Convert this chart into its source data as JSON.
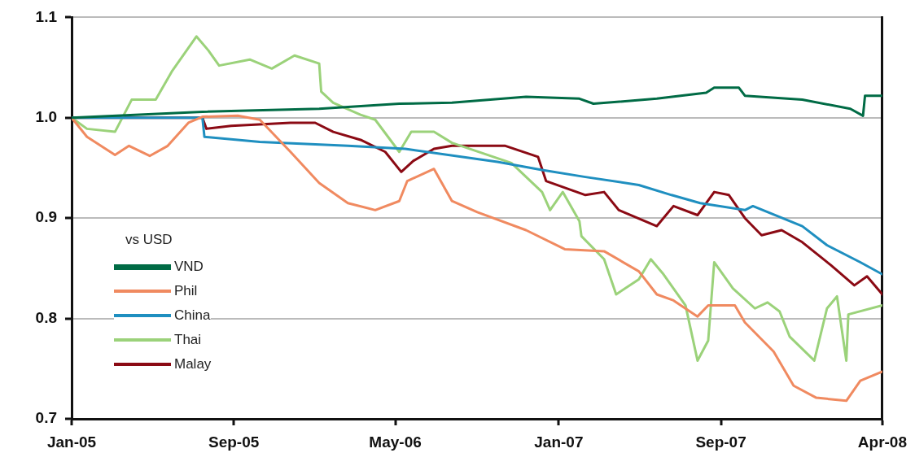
{
  "chart_data": {
    "type": "line",
    "legend_title": "vs USD",
    "legend": "bottom left",
    "grid": "y",
    "marker": "none",
    "line_style": "solid",
    "xlim": [
      "2005-01-01",
      "2008-04-30"
    ],
    "xticks": [
      {
        "value": "2005-01-01",
        "label": "Jan-05"
      },
      {
        "value": "2005-09-01",
        "label": "Sep-05"
      },
      {
        "value": "2006-05-01",
        "label": "May-06"
      },
      {
        "value": "2007-01-01",
        "label": "Jan-07"
      },
      {
        "value": "2007-09-01",
        "label": "Sep-07"
      },
      {
        "value": "2008-04-30",
        "label": "Apr-08"
      }
    ],
    "ylim": [
      0.7,
      1.1
    ],
    "yticks": [
      {
        "value": 0.7,
        "label": "0.7"
      },
      {
        "value": 0.8,
        "label": "0.8"
      },
      {
        "value": 0.9,
        "label": "0.9"
      },
      {
        "value": 1.0,
        "label": "1.0"
      },
      {
        "value": 1.1,
        "label": "1.1"
      }
    ],
    "series": [
      {
        "name": "VND",
        "color": "#006b45",
        "x": [
          "2005-01-01",
          "2005-07-16",
          "2006-01-07",
          "2006-05-07",
          "2006-07-25",
          "2006-11-13",
          "2007-02-01",
          "2007-02-22",
          "2007-05-28",
          "2007-08-10",
          "2007-08-22",
          "2007-09-28",
          "2007-10-07",
          "2008-01-01",
          "2008-03-13",
          "2008-04-01",
          "2008-04-04",
          "2008-04-30"
        ],
        "values": [
          1.0,
          1.006,
          1.009,
          1.014,
          1.015,
          1.021,
          1.019,
          1.014,
          1.019,
          1.025,
          1.03,
          1.03,
          1.022,
          1.018,
          1.009,
          1.002,
          1.022,
          1.022
        ]
      },
      {
        "name": "Phil",
        "color": "#f08a60",
        "x": [
          "2005-01-01",
          "2005-01-24",
          "2005-03-07",
          "2005-03-28",
          "2005-04-28",
          "2005-05-25",
          "2005-06-25",
          "2005-07-16",
          "2005-09-07",
          "2005-10-10",
          "2005-11-25",
          "2006-01-07",
          "2006-02-19",
          "2006-04-01",
          "2006-05-07",
          "2006-05-19",
          "2006-06-28",
          "2006-07-25",
          "2006-09-01",
          "2006-11-13",
          "2007-01-10",
          "2007-03-10",
          "2007-05-01",
          "2007-05-28",
          "2007-06-22",
          "2007-07-28",
          "2007-08-13",
          "2007-09-22",
          "2007-10-07",
          "2007-11-19",
          "2007-12-19",
          "2008-01-22",
          "2008-03-07",
          "2008-03-28",
          "2008-04-30"
        ],
        "values": [
          1.0,
          0.981,
          0.963,
          0.972,
          0.962,
          0.972,
          0.995,
          1.001,
          1.002,
          0.998,
          0.966,
          0.935,
          0.915,
          0.908,
          0.917,
          0.937,
          0.949,
          0.917,
          0.906,
          0.888,
          0.869,
          0.867,
          0.847,
          0.824,
          0.818,
          0.802,
          0.813,
          0.813,
          0.796,
          0.767,
          0.733,
          0.721,
          0.718,
          0.738,
          0.747
        ]
      },
      {
        "name": "China",
        "color": "#1f8fc0",
        "x": [
          "2005-01-01",
          "2005-07-16",
          "2005-07-19",
          "2005-10-10",
          "2006-02-19",
          "2006-05-16",
          "2006-10-01",
          "2006-12-07",
          "2007-02-10",
          "2007-05-01",
          "2007-06-19",
          "2007-08-01",
          "2007-10-07",
          "2007-10-19",
          "2008-01-01",
          "2008-02-07",
          "2008-03-28",
          "2008-04-30"
        ],
        "values": [
          1.0,
          1.0,
          0.981,
          0.976,
          0.972,
          0.969,
          0.956,
          0.948,
          0.941,
          0.933,
          0.923,
          0.915,
          0.908,
          0.912,
          0.892,
          0.873,
          0.856,
          0.844
        ]
      },
      {
        "name": "Thai",
        "color": "#9bd27a",
        "x": [
          "2005-01-01",
          "2005-01-24",
          "2005-03-07",
          "2005-04-01",
          "2005-05-07",
          "2005-06-01",
          "2005-07-07",
          "2005-07-25",
          "2005-08-10",
          "2005-09-25",
          "2005-10-28",
          "2005-12-01",
          "2006-01-07",
          "2006-01-10",
          "2006-01-28",
          "2006-03-10",
          "2006-04-01",
          "2006-05-07",
          "2006-05-25",
          "2006-06-28",
          "2006-07-25",
          "2006-10-22",
          "2006-12-07",
          "2006-12-19",
          "2007-01-07",
          "2007-02-01",
          "2007-02-04",
          "2007-03-10",
          "2007-03-28",
          "2007-05-01",
          "2007-05-19",
          "2007-06-07",
          "2007-07-10",
          "2007-07-28",
          "2007-08-13",
          "2007-08-22",
          "2007-09-19",
          "2007-10-22",
          "2007-11-10",
          "2007-11-28",
          "2007-12-13",
          "2008-01-19",
          "2008-02-07",
          "2008-02-22",
          "2008-03-07",
          "2008-03-10",
          "2008-04-30"
        ],
        "values": [
          1.0,
          0.989,
          0.986,
          1.018,
          1.018,
          1.047,
          1.081,
          1.067,
          1.052,
          1.058,
          1.049,
          1.062,
          1.054,
          1.026,
          1.015,
          1.003,
          0.998,
          0.966,
          0.986,
          0.986,
          0.975,
          0.955,
          0.926,
          0.908,
          0.926,
          0.897,
          0.882,
          0.859,
          0.824,
          0.839,
          0.859,
          0.844,
          0.813,
          0.758,
          0.778,
          0.856,
          0.83,
          0.81,
          0.816,
          0.807,
          0.782,
          0.758,
          0.81,
          0.822,
          0.758,
          0.804,
          0.813
        ]
      },
      {
        "name": "Malay",
        "color": "#8b0a14",
        "x": [
          "2005-01-01",
          "2005-07-16",
          "2005-07-22",
          "2005-08-28",
          "2005-11-25",
          "2006-01-01",
          "2006-01-28",
          "2006-03-10",
          "2006-04-16",
          "2006-05-10",
          "2006-05-28",
          "2006-06-28",
          "2006-07-25",
          "2006-10-13",
          "2006-12-01",
          "2006-12-13",
          "2007-02-10",
          "2007-03-10",
          "2007-04-01",
          "2007-05-28",
          "2007-06-22",
          "2007-07-28",
          "2007-08-22",
          "2007-09-13",
          "2007-10-07",
          "2007-11-01",
          "2007-12-01",
          "2008-01-01",
          "2008-02-13",
          "2008-03-19",
          "2008-04-07",
          "2008-04-30"
        ],
        "values": [
          1.0,
          1.0,
          0.989,
          0.992,
          0.995,
          0.995,
          0.986,
          0.978,
          0.966,
          0.946,
          0.957,
          0.969,
          0.972,
          0.972,
          0.961,
          0.937,
          0.923,
          0.926,
          0.908,
          0.892,
          0.912,
          0.903,
          0.926,
          0.923,
          0.9,
          0.883,
          0.888,
          0.876,
          0.853,
          0.833,
          0.842,
          0.824
        ]
      }
    ]
  }
}
